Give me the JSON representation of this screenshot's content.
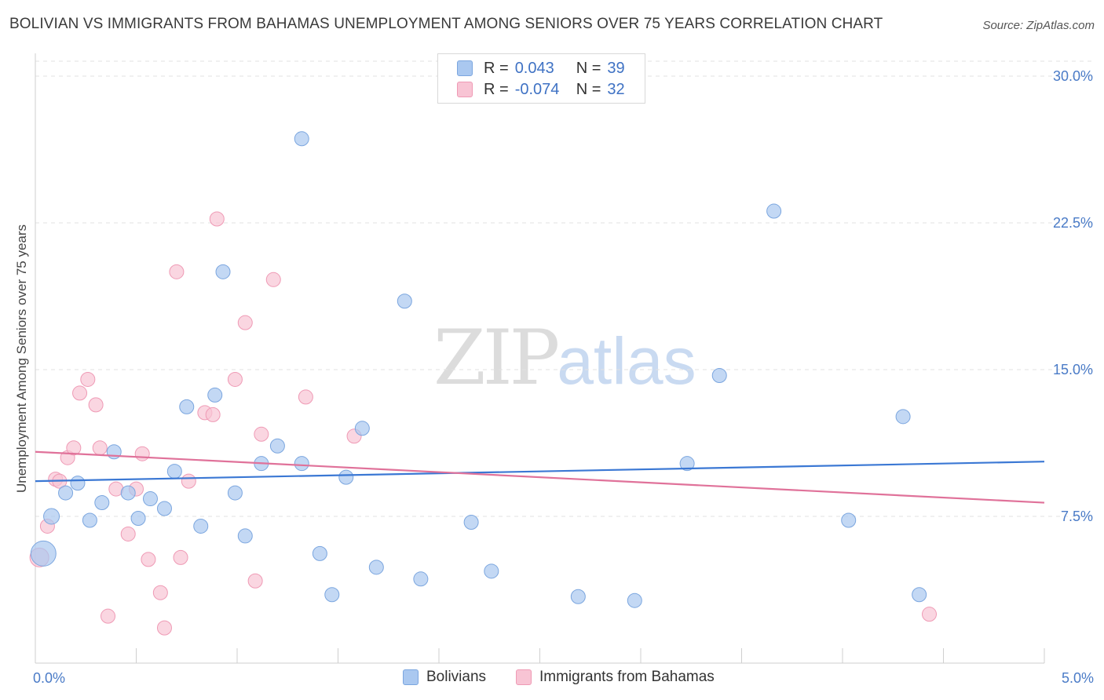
{
  "title": "BOLIVIAN VS IMMIGRANTS FROM BAHAMAS UNEMPLOYMENT AMONG SENIORS OVER 75 YEARS CORRELATION CHART",
  "source": "Source: ZipAtlas.com",
  "watermark": {
    "zip": "ZIP",
    "atlas": "atlas"
  },
  "legend": {
    "rows": [
      {
        "r_label": "R =",
        "r_value": "0.043",
        "n_label": "N =",
        "n_value": "39",
        "color": "#aac8f0",
        "border": "#7ba6df"
      },
      {
        "r_label": "R =",
        "r_value": "-0.074",
        "n_label": "N =",
        "n_value": "32",
        "color": "#f8c4d4",
        "border": "#ef9ab5"
      }
    ]
  },
  "bottom_legend": [
    "Bolivians",
    "Immigrants from Bahamas"
  ],
  "chart_data": {
    "type": "scatter",
    "title": "BOLIVIAN VS IMMIGRANTS FROM BAHAMAS UNEMPLOYMENT AMONG SENIORS OVER 75 YEARS CORRELATION CHART",
    "xlabel": "",
    "ylabel": "Unemployment Among Seniors over 75 years",
    "xlim": [
      0,
      5
    ],
    "ylim": [
      0,
      30
    ],
    "x_ticks_labeled": [
      "0.0%",
      "5.0%"
    ],
    "y_ticks": [
      7.5,
      15.0,
      22.5,
      30.0
    ],
    "y_tick_labels": [
      "7.5%",
      "15.0%",
      "22.5%",
      "30.0%"
    ],
    "grid": "horizontal dashed",
    "legend_placement": "top-center",
    "series": [
      {
        "name": "Bolivians",
        "color": "#aac8f0",
        "stroke": "#7ba6df",
        "line_color": "#3b78d4",
        "trend": [
          [
            0,
            9.3
          ],
          [
            5,
            10.3
          ]
        ],
        "points": [
          [
            0.04,
            5.6,
            16
          ],
          [
            0.08,
            7.5,
            10
          ],
          [
            0.15,
            8.7,
            9
          ],
          [
            0.21,
            9.2,
            9
          ],
          [
            0.27,
            7.3,
            9
          ],
          [
            0.33,
            8.2,
            9
          ],
          [
            0.39,
            10.8,
            9
          ],
          [
            0.46,
            8.7,
            9
          ],
          [
            0.51,
            7.4,
            9
          ],
          [
            0.57,
            8.4,
            9
          ],
          [
            0.64,
            7.9,
            9
          ],
          [
            0.69,
            9.8,
            9
          ],
          [
            0.75,
            13.1,
            9
          ],
          [
            0.82,
            7.0,
            9
          ],
          [
            0.93,
            20.0,
            9
          ],
          [
            0.89,
            13.7,
            9
          ],
          [
            0.99,
            8.7,
            9
          ],
          [
            1.04,
            6.5,
            9
          ],
          [
            1.12,
            10.2,
            9
          ],
          [
            1.2,
            11.1,
            9
          ],
          [
            1.32,
            10.2,
            9
          ],
          [
            1.32,
            26.8,
            9
          ],
          [
            1.41,
            5.6,
            9
          ],
          [
            1.47,
            3.5,
            9
          ],
          [
            1.54,
            9.5,
            9
          ],
          [
            1.62,
            12.0,
            9
          ],
          [
            1.69,
            4.9,
            9
          ],
          [
            1.83,
            18.5,
            9
          ],
          [
            1.91,
            4.3,
            9
          ],
          [
            2.16,
            7.2,
            9
          ],
          [
            2.26,
            4.7,
            9
          ],
          [
            2.69,
            3.4,
            9
          ],
          [
            2.97,
            3.2,
            9
          ],
          [
            3.23,
            10.2,
            9
          ],
          [
            3.39,
            14.7,
            9
          ],
          [
            3.66,
            23.1,
            9
          ],
          [
            4.03,
            7.3,
            9
          ],
          [
            4.3,
            12.6,
            9
          ],
          [
            4.38,
            3.5,
            9
          ]
        ]
      },
      {
        "name": "Immigrants from Bahamas",
        "color": "#f8c4d4",
        "stroke": "#ef9ab5",
        "line_color": "#e0729a",
        "trend": [
          [
            0,
            10.8
          ],
          [
            5,
            8.2
          ]
        ],
        "points": [
          [
            0.02,
            5.4,
            12
          ],
          [
            0.06,
            7.0,
            9
          ],
          [
            0.1,
            9.4,
            9
          ],
          [
            0.12,
            9.3,
            9
          ],
          [
            0.16,
            10.5,
            9
          ],
          [
            0.19,
            11.0,
            9
          ],
          [
            0.22,
            13.8,
            9
          ],
          [
            0.26,
            14.5,
            9
          ],
          [
            0.3,
            13.2,
            9
          ],
          [
            0.32,
            11.0,
            9
          ],
          [
            0.36,
            2.4,
            9
          ],
          [
            0.4,
            8.9,
            9
          ],
          [
            0.46,
            6.6,
            9
          ],
          [
            0.5,
            8.9,
            9
          ],
          [
            0.53,
            10.7,
            9
          ],
          [
            0.56,
            5.3,
            9
          ],
          [
            0.62,
            3.6,
            9
          ],
          [
            0.64,
            1.8,
            9
          ],
          [
            0.7,
            20.0,
            9
          ],
          [
            0.72,
            5.4,
            9
          ],
          [
            0.76,
            9.3,
            9
          ],
          [
            0.84,
            12.8,
            9
          ],
          [
            0.88,
            12.7,
            9
          ],
          [
            0.9,
            22.7,
            9
          ],
          [
            0.99,
            14.5,
            9
          ],
          [
            1.04,
            17.4,
            9
          ],
          [
            1.09,
            4.2,
            9
          ],
          [
            1.12,
            11.7,
            9
          ],
          [
            1.18,
            19.6,
            9
          ],
          [
            1.34,
            13.6,
            9
          ],
          [
            1.58,
            11.6,
            9
          ],
          [
            4.43,
            2.5,
            9
          ]
        ]
      }
    ]
  }
}
